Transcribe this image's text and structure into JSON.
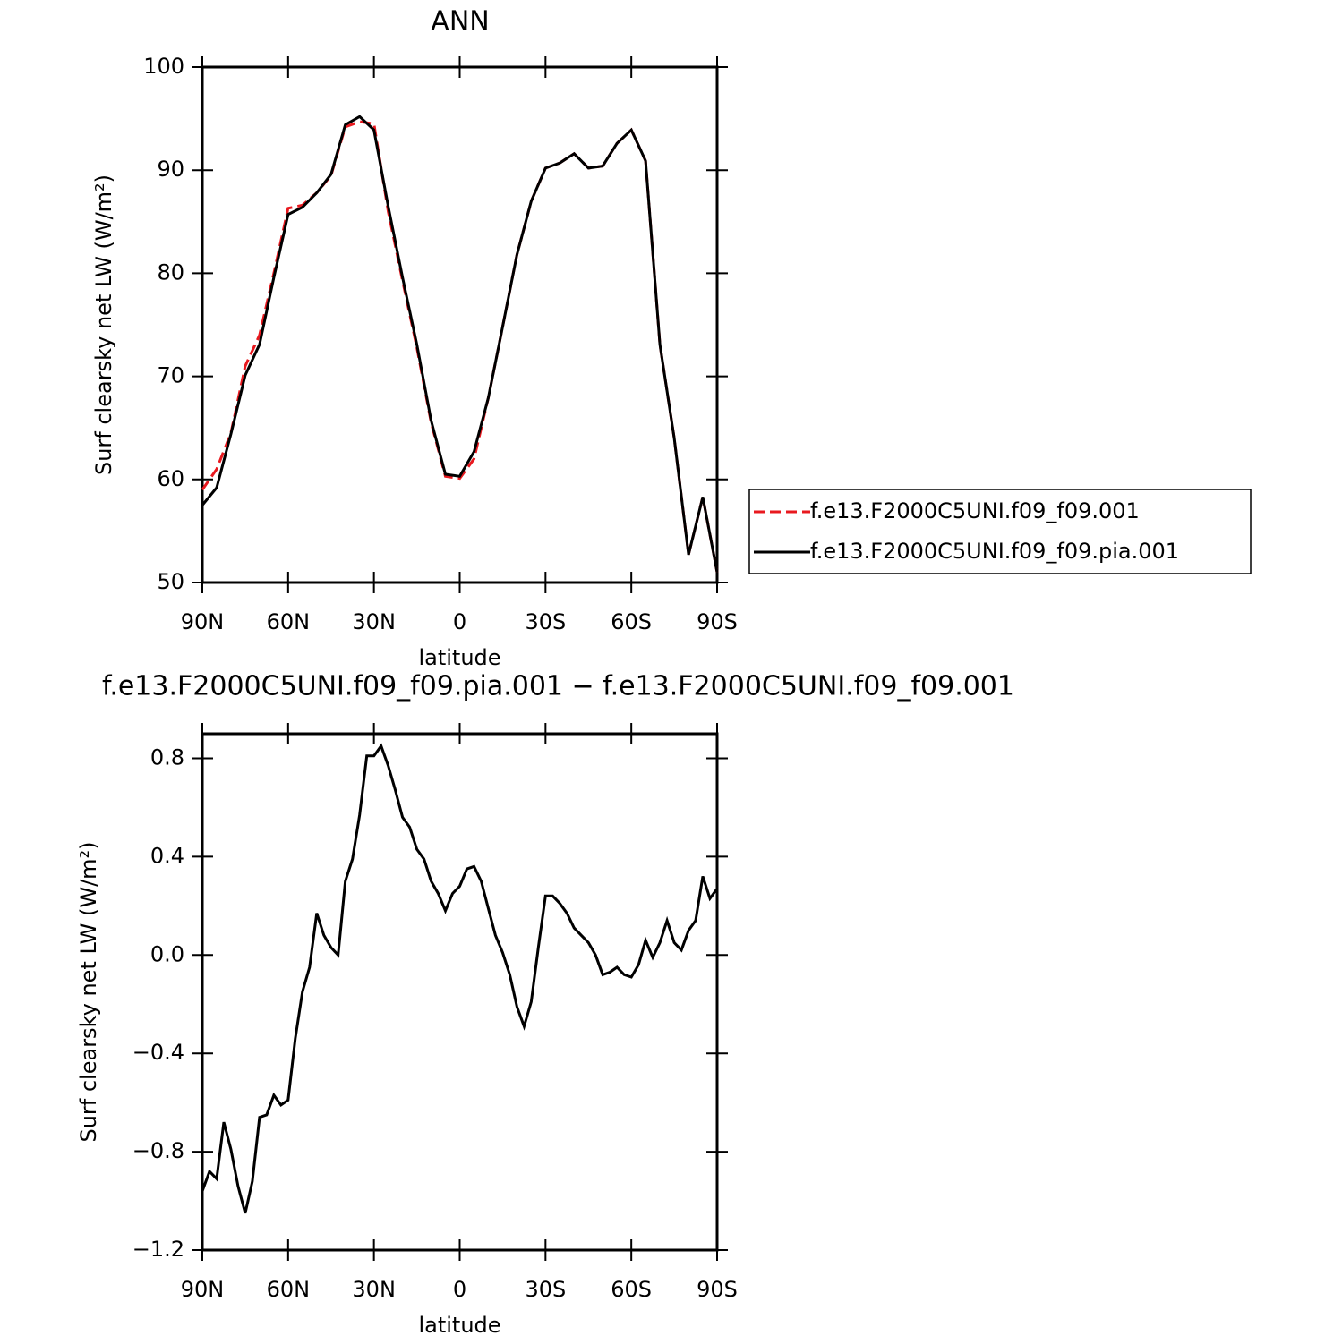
{
  "chart_data": [
    {
      "type": "line",
      "title": "ANN",
      "xlabel": "latitude",
      "ylabel": "Surf clearsky net LW (W/m²)",
      "x": [
        90,
        85,
        80,
        75,
        70,
        65,
        60,
        55,
        50,
        45,
        40,
        35,
        30,
        25,
        20,
        15,
        10,
        5,
        0,
        -5,
        -10,
        -15,
        -20,
        -25,
        -30,
        -35,
        -40,
        -45,
        -50,
        -55,
        -60,
        -65,
        -70,
        -75,
        -80,
        -85,
        -90
      ],
      "series": [
        {
          "name": "f.e13.F2000C5UNI.f09_f09.001",
          "color": "#e8191f",
          "linestyle": "dashed",
          "values": [
            59,
            61,
            64.5,
            71,
            74,
            80,
            86.3,
            86.6,
            87.8,
            89.5,
            94.2,
            94.7,
            94.5,
            86,
            79.3,
            72.8,
            65.5,
            60.3,
            60.1,
            62,
            67.9,
            74.8,
            81.8,
            87,
            90.2,
            90.7,
            91.6,
            90.2,
            90.4,
            92.6,
            93.9,
            90.9,
            73.1,
            64,
            52.7,
            58.3,
            51
          ]
        },
        {
          "name": "f.e13.F2000C5UNI.f09_f09.pia.001",
          "color": "#000000",
          "linestyle": "solid",
          "values": [
            57.5,
            59.2,
            64.4,
            70.1,
            73.1,
            79.6,
            85.7,
            86.4,
            87.8,
            89.6,
            94.4,
            95.2,
            93.9,
            86.5,
            79.6,
            73.1,
            65.7,
            60.5,
            60.3,
            62.7,
            67.9,
            74.8,
            81.8,
            87,
            90.2,
            90.7,
            91.6,
            90.2,
            90.4,
            92.6,
            93.9,
            90.9,
            73.1,
            64,
            52.7,
            58.3,
            51
          ]
        }
      ],
      "xlim": [
        90,
        -90
      ],
      "xticks": [
        {
          "value": 90,
          "label": "90N"
        },
        {
          "value": 60,
          "label": "60N"
        },
        {
          "value": 30,
          "label": "30N"
        },
        0,
        {
          "value": -30,
          "label": "30S"
        },
        {
          "value": -60,
          "label": "60S"
        },
        {
          "value": -90,
          "label": "90S"
        }
      ],
      "ylim": [
        50,
        100
      ],
      "yticks": [
        50,
        60,
        70,
        80,
        90,
        100
      ],
      "legend": "right"
    },
    {
      "type": "line",
      "title": "f.e13.F2000C5UNI.f09_f09.pia.001 − f.e13.F2000C5UNI.f09_f09.001",
      "xlabel": "latitude",
      "ylabel": "Surf clearsky net LW (W/m²)",
      "x": [
        90,
        87.5,
        85,
        82.5,
        80,
        77.5,
        75,
        72.5,
        70,
        67.5,
        65,
        62.5,
        60,
        57.5,
        55,
        52.5,
        50,
        47.5,
        45,
        42.5,
        40,
        37.5,
        35,
        32.5,
        30,
        27.5,
        25,
        22.5,
        20,
        17.5,
        15,
        12.5,
        10,
        7.5,
        5,
        2.5,
        0,
        -2.5,
        -5,
        -7.5,
        -10,
        -12.5,
        -15,
        -17.5,
        -20,
        -22.5,
        -25,
        -27.5,
        -30,
        -32.5,
        -35,
        -37.5,
        -40,
        -42.5,
        -45,
        -47.5,
        -50,
        -52.5,
        -55,
        -57.5,
        -60,
        -62.5,
        -65,
        -67.5,
        -70,
        -72.5,
        -75,
        -77.5,
        -80,
        -82.5,
        -85,
        -87.5,
        -90
      ],
      "series": [
        {
          "color": "#000000",
          "linestyle": "solid",
          "values": [
            -0.96,
            -0.88,
            -0.91,
            -0.68,
            -0.79,
            -0.94,
            -1.05,
            -0.92,
            -0.66,
            -0.65,
            -0.57,
            -0.61,
            -0.59,
            -0.34,
            -0.15,
            -0.05,
            0.17,
            0.08,
            0.03,
            0.0,
            0.3,
            0.39,
            0.57,
            0.81,
            0.81,
            0.85,
            0.77,
            0.67,
            0.56,
            0.52,
            0.43,
            0.39,
            0.3,
            0.25,
            0.18,
            0.25,
            0.28,
            0.35,
            0.36,
            0.3,
            0.19,
            0.08,
            0.01,
            -0.08,
            -0.21,
            -0.29,
            -0.19,
            0.03,
            0.24,
            0.24,
            0.21,
            0.17,
            0.11,
            0.08,
            0.05,
            0.0,
            -0.08,
            -0.07,
            -0.05,
            -0.08,
            -0.09,
            -0.04,
            0.06,
            -0.01,
            0.05,
            0.14,
            0.05,
            0.02,
            0.1,
            0.14,
            0.32,
            0.23,
            0.27
          ]
        }
      ],
      "xlim": [
        90,
        -90
      ],
      "xticks": [
        {
          "value": 90,
          "label": "90N"
        },
        {
          "value": 60,
          "label": "60N"
        },
        {
          "value": 30,
          "label": "30N"
        },
        0,
        {
          "value": -30,
          "label": "30S"
        },
        {
          "value": -60,
          "label": "60S"
        },
        {
          "value": -90,
          "label": "90S"
        }
      ],
      "ylim": [
        -1.2,
        0.9
      ],
      "yticks": [
        {
          "value": -1.2,
          "label": "−1.2"
        },
        {
          "value": -0.8,
          "label": "−0.8"
        },
        {
          "value": -0.4,
          "label": "−0.4"
        },
        {
          "value": 0,
          "label": "0.0"
        },
        0.4,
        0.8
      ]
    }
  ]
}
